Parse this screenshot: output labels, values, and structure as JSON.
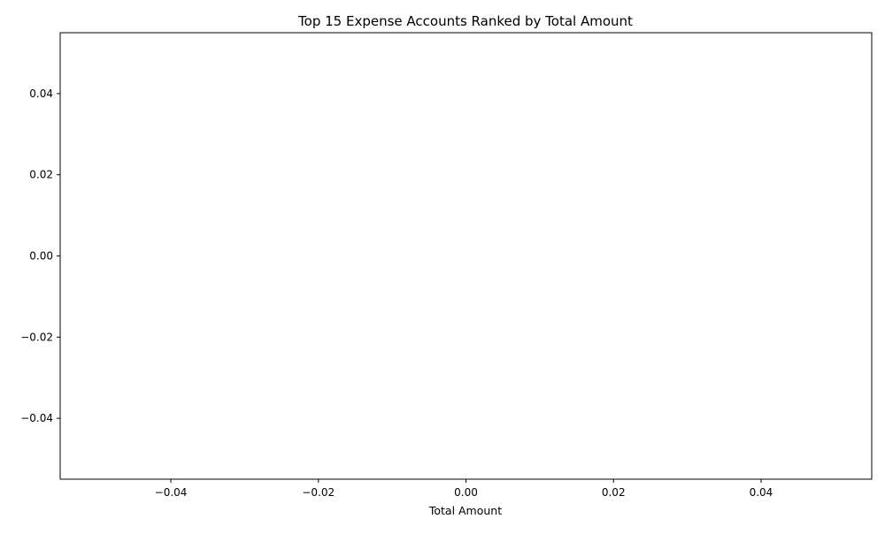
{
  "chart_data": {
    "type": "bar",
    "orientation": "horizontal",
    "title": "Top 15 Expense Accounts Ranked by Total Amount",
    "xlabel": "Total Amount",
    "ylabel": "",
    "categories": [],
    "values": [],
    "xlim": [
      -0.055,
      0.055
    ],
    "ylim": [
      0.055,
      -0.055
    ],
    "x_ticks": [
      -0.04,
      -0.02,
      0.0,
      0.02,
      0.04
    ],
    "x_tick_labels": [
      "−0.04",
      "−0.02",
      "0.00",
      "0.02",
      "0.04"
    ],
    "y_ticks": [
      -0.04,
      -0.02,
      0.0,
      0.02,
      0.04
    ],
    "y_tick_labels": [
      "−0.04",
      "−0.02",
      "0.00",
      "0.02",
      "0.04"
    ],
    "grid": false,
    "legend": "none"
  }
}
